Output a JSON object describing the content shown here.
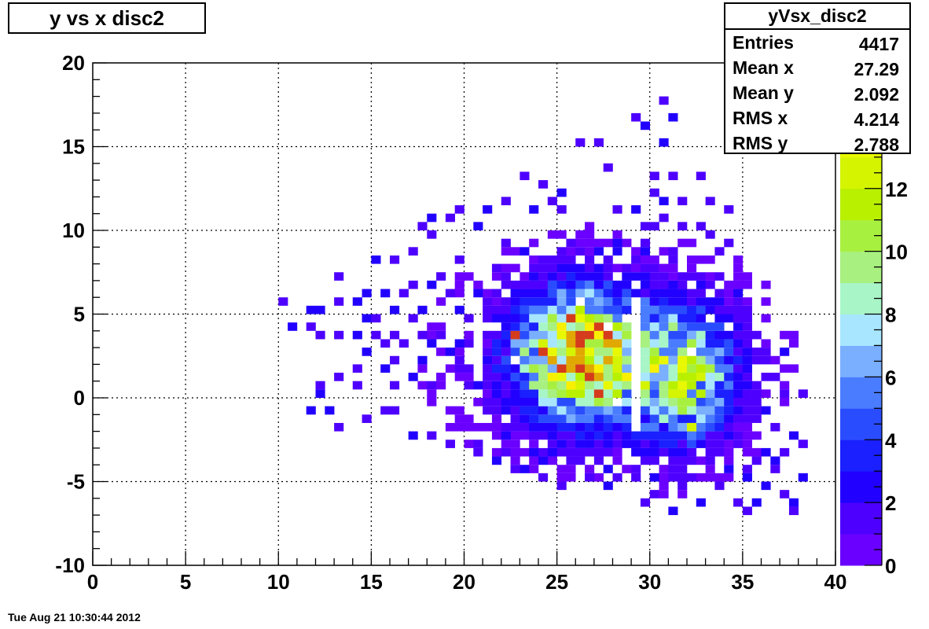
{
  "title": "y vs x disc2",
  "stats": {
    "name": "yVsx_disc2",
    "rows": [
      {
        "label": "Entries",
        "value": "4417"
      },
      {
        "label": "Mean x",
        "value": "27.29"
      },
      {
        "label": "Mean y",
        "value": "2.092"
      },
      {
        "label": "RMS x",
        "value": "4.214"
      },
      {
        "label": "RMS y",
        "value": "2.788"
      }
    ]
  },
  "timestamp": "Tue Aug 21 10:30:44 2012",
  "chart_data": {
    "type": "heatmap",
    "title": "y vs x disc2",
    "xlabel": "",
    "ylabel": "",
    "xlim": [
      0,
      40
    ],
    "ylim": [
      -10,
      20
    ],
    "xticks": [
      "0",
      "5",
      "10",
      "15",
      "20",
      "25",
      "30",
      "35",
      "40"
    ],
    "yticks": [
      "-10",
      "-5",
      "0",
      "5",
      "10",
      "15",
      "20"
    ],
    "zlim": [
      0,
      16
    ],
    "zticks": [
      "0",
      "2",
      "4",
      "6",
      "8",
      "10",
      "12",
      "14"
    ],
    "grid": true,
    "bin_size": [
      0.5,
      0.5
    ],
    "palette": [
      "#6a00ff",
      "#4e00ff",
      "#2200ff",
      "#1a20ff",
      "#2a4cff",
      "#4a7cff",
      "#7aaeff",
      "#a8e6ff",
      "#a8f5c8",
      "#a8f080",
      "#a8f040",
      "#b8f000",
      "#d4f400",
      "#e8f800",
      "#f8f000",
      "#e0a800"
    ],
    "density_sources": [
      {
        "name": "core-left",
        "x": 26.3,
        "y": 2.6,
        "sx": 2.2,
        "sy": 2.4,
        "peak": 14
      },
      {
        "name": "core-right",
        "x": 31.8,
        "y": 1.4,
        "sx": 1.8,
        "sy": 2.6,
        "peak": 9
      },
      {
        "name": "halo",
        "x": 27.5,
        "y": 2.5,
        "sx": 6.5,
        "sy": 4.5,
        "peak": 1.2
      }
    ],
    "gaps": [
      {
        "x_range": [
          29.0,
          29.7
        ],
        "y_range": [
          -2,
          6
        ]
      },
      {
        "x_range": [
          20.3,
          20.8
        ],
        "y_range": [
          0,
          6
        ]
      }
    ],
    "hot_cells": [
      {
        "x": 25.25,
        "y": 1.75,
        "z": 15
      },
      {
        "x": 27.25,
        "y": 0.25,
        "z": 15
      },
      {
        "x": 22.75,
        "y": 3.75,
        "z": 15
      },
      {
        "x": 28.25,
        "y": 2.75,
        "z": 13
      },
      {
        "x": 32.25,
        "y": -1.75,
        "z": 12
      },
      {
        "x": 26.75,
        "y": 4.25,
        "z": 14
      }
    ],
    "sparse_cells": [
      [
        30.5,
        17.5
      ],
      [
        29.25,
        16.75
      ],
      [
        31.25,
        16.75
      ],
      [
        29.75,
        16.25
      ],
      [
        30.75,
        15.25
      ],
      [
        26.25,
        15.0
      ],
      [
        27.25,
        15.0
      ],
      [
        27.75,
        13.75
      ],
      [
        23.25,
        13.25
      ],
      [
        30.25,
        13.0
      ],
      [
        31.25,
        13.25
      ],
      [
        32.75,
        13.25
      ],
      [
        24.25,
        12.75
      ],
      [
        30.25,
        12.25
      ],
      [
        22.25,
        11.75
      ],
      [
        24.5,
        11.75
      ],
      [
        25.25,
        12.0
      ],
      [
        30.5,
        11.75
      ],
      [
        31.75,
        11.75
      ],
      [
        33.25,
        11.5
      ],
      [
        19.75,
        11.0
      ],
      [
        21.0,
        11.0
      ],
      [
        23.75,
        11.0
      ],
      [
        25.0,
        11.0
      ],
      [
        28.25,
        11.0
      ],
      [
        29.0,
        11.0
      ],
      [
        30.5,
        10.75
      ],
      [
        34.0,
        11.0
      ],
      [
        18.25,
        10.75
      ],
      [
        19.0,
        10.75
      ],
      [
        17.75,
        10.25
      ],
      [
        20.5,
        10.25
      ],
      [
        26.75,
        10.25
      ],
      [
        29.5,
        10.25
      ],
      [
        30.25,
        10.0
      ],
      [
        31.5,
        10.0
      ],
      [
        32.75,
        10.25
      ],
      [
        18.25,
        9.75
      ],
      [
        24.75,
        9.75
      ],
      [
        26.5,
        9.75
      ],
      [
        33.25,
        9.75
      ],
      [
        22.25,
        9.25
      ],
      [
        25.75,
        9.25
      ],
      [
        27.5,
        9.0
      ],
      [
        28.25,
        9.25
      ],
      [
        26.75,
        9.25
      ],
      [
        29.75,
        9.0
      ],
      [
        34.25,
        9.25
      ],
      [
        17.25,
        8.75
      ],
      [
        19.75,
        8.25
      ],
      [
        23.0,
        8.75
      ],
      [
        24.5,
        8.25
      ],
      [
        27.25,
        8.5
      ],
      [
        28.0,
        8.5
      ],
      [
        29.75,
        8.5
      ],
      [
        31.25,
        8.5
      ],
      [
        33.75,
        8.5
      ],
      [
        15.25,
        8.0
      ],
      [
        16.25,
        8.0
      ],
      [
        21.75,
        7.75
      ],
      [
        23.75,
        7.75
      ],
      [
        25.75,
        7.75
      ],
      [
        30.25,
        7.75
      ],
      [
        32.25,
        7.75
      ],
      [
        13.25,
        7.25
      ],
      [
        18.75,
        7.25
      ],
      [
        20.25,
        7.25
      ],
      [
        24.75,
        7.25
      ],
      [
        33.5,
        7.25
      ],
      [
        17.25,
        6.75
      ],
      [
        18.0,
        6.75
      ],
      [
        22.25,
        6.75
      ],
      [
        26.0,
        6.75
      ],
      [
        28.25,
        6.5
      ],
      [
        31.75,
        6.5
      ],
      [
        14.75,
        6.25
      ],
      [
        15.75,
        6.25
      ],
      [
        16.75,
        6.0
      ],
      [
        19.25,
        6.25
      ],
      [
        20.75,
        6.25
      ],
      [
        21.75,
        6.0
      ],
      [
        23.75,
        6.25
      ],
      [
        29.25,
        6.0
      ],
      [
        33.75,
        6.0
      ],
      [
        34.75,
        6.25
      ],
      [
        10.25,
        5.75
      ],
      [
        11.75,
        5.25
      ],
      [
        13.25,
        5.75
      ],
      [
        14.25,
        5.5
      ],
      [
        16.25,
        5.25
      ],
      [
        17.75,
        5.25
      ],
      [
        19.75,
        5.0
      ],
      [
        12.25,
        5.0
      ],
      [
        14.75,
        4.75
      ],
      [
        15.25,
        4.75
      ],
      [
        17.25,
        4.5
      ],
      [
        18.75,
        4.25
      ],
      [
        10.75,
        4.25
      ],
      [
        11.75,
        4.25
      ],
      [
        12.25,
        3.75
      ],
      [
        14.25,
        3.75
      ],
      [
        15.0,
        3.75
      ],
      [
        16.25,
        3.75
      ],
      [
        17.75,
        3.75
      ],
      [
        18.5,
        3.5
      ],
      [
        19.75,
        3.25
      ],
      [
        13.25,
        3.5
      ],
      [
        15.75,
        3.25
      ],
      [
        16.75,
        3.0
      ],
      [
        18.25,
        3.25
      ],
      [
        19.25,
        2.75
      ],
      [
        14.75,
        2.75
      ],
      [
        16.25,
        2.25
      ],
      [
        17.75,
        2.25
      ],
      [
        19.5,
        2.25
      ],
      [
        14.25,
        1.75
      ],
      [
        15.75,
        1.75
      ],
      [
        18.75,
        1.25
      ],
      [
        13.25,
        1.25
      ],
      [
        17.25,
        1.25
      ],
      [
        12.25,
        0.75
      ],
      [
        12.25,
        0.25
      ],
      [
        14.25,
        0.75
      ],
      [
        16.25,
        0.75
      ],
      [
        18.25,
        0.75
      ],
      [
        20.5,
        0.75
      ],
      [
        37.25,
        0.25
      ],
      [
        38.25,
        0.25
      ],
      [
        35.75,
        0.75
      ],
      [
        36.75,
        1.25
      ],
      [
        37.75,
        1.5
      ],
      [
        35.25,
        2.25
      ],
      [
        36.25,
        2.75
      ],
      [
        37.25,
        2.75
      ],
      [
        35.75,
        3.5
      ],
      [
        11.75,
        -0.75
      ],
      [
        12.75,
        -0.75
      ],
      [
        14.75,
        -1.25
      ],
      [
        15.75,
        -0.75
      ],
      [
        16.25,
        -0.75
      ],
      [
        19.25,
        -0.75
      ],
      [
        21.25,
        -0.75
      ],
      [
        13.25,
        -1.75
      ],
      [
        17.25,
        -2.25
      ],
      [
        18.25,
        -2.25
      ],
      [
        19.25,
        -2.75
      ],
      [
        20.75,
        -2.75
      ],
      [
        21.75,
        -1.75
      ],
      [
        22.25,
        -2.5
      ],
      [
        36.25,
        -0.75
      ],
      [
        37.0,
        -0.25
      ],
      [
        36.75,
        -1.75
      ],
      [
        37.75,
        -2.25
      ],
      [
        38.25,
        -2.75
      ],
      [
        36.25,
        -3.25
      ],
      [
        37.25,
        -3.25
      ],
      [
        35.75,
        -3.75
      ],
      [
        36.75,
        -3.75
      ],
      [
        35.25,
        -4.25
      ],
      [
        36.75,
        -4.25
      ],
      [
        38.25,
        -4.75
      ],
      [
        35.25,
        -4.75
      ],
      [
        36.0,
        -5.25
      ],
      [
        37.25,
        -5.75
      ],
      [
        37.75,
        -6.25
      ],
      [
        35.75,
        -6.25
      ],
      [
        35.25,
        -6.75
      ],
      [
        34.75,
        -6.25
      ],
      [
        37.75,
        -6.75
      ],
      [
        32.75,
        -6.25
      ],
      [
        31.25,
        -6.75
      ],
      [
        30.25,
        -5.75
      ],
      [
        29.75,
        -6.25
      ],
      [
        28.25,
        -5.0
      ],
      [
        26.75,
        -5.0
      ],
      [
        27.5,
        -5.25
      ],
      [
        25.25,
        -5.25
      ],
      [
        24.25,
        -4.75
      ],
      [
        23.25,
        -4.25
      ],
      [
        22.75,
        -4.25
      ],
      [
        21.75,
        -3.75
      ],
      [
        22.25,
        -3.5
      ],
      [
        20.75,
        -3.25
      ],
      [
        23.75,
        -3.5
      ],
      [
        24.75,
        -3.25
      ],
      [
        26.5,
        -3.25
      ],
      [
        27.25,
        -3.75
      ],
      [
        28.75,
        -4.25
      ],
      [
        29.25,
        -4.75
      ],
      [
        30.75,
        -4.75
      ],
      [
        32.25,
        -4.75
      ],
      [
        33.25,
        -4.75
      ],
      [
        34.25,
        -4.25
      ],
      [
        33.75,
        -5.25
      ],
      [
        31.75,
        -5.25
      ],
      [
        30.0,
        -5.0
      ],
      [
        28.0,
        -3.25
      ],
      [
        25.75,
        -3.75
      ],
      [
        24.25,
        -4.0
      ],
      [
        26.25,
        -4.0
      ],
      [
        27.75,
        -4.25
      ]
    ]
  }
}
